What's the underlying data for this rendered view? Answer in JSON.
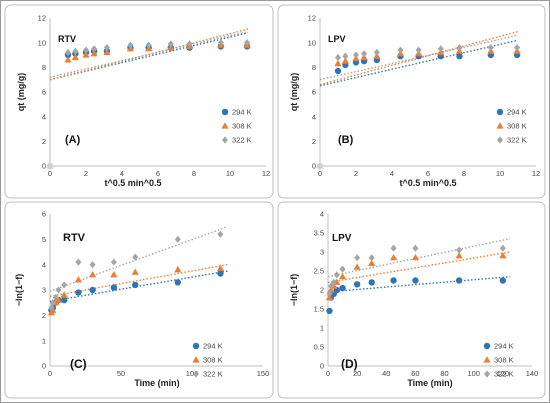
{
  "panels": [
    {
      "tag": "RTV",
      "panel_label": "(A)",
      "xlabel": "t^0.5 min^0.5",
      "ylabel": "qt (mg/g)",
      "xlim": [
        0,
        12
      ],
      "ylim": [
        0,
        12
      ],
      "xticks": [
        0,
        2,
        4,
        6,
        8,
        10,
        12
      ],
      "yticks": [
        0,
        2,
        4,
        6,
        8,
        10,
        12
      ],
      "legend": [
        "294 K",
        "308 K",
        "322 K"
      ],
      "series": [
        {
          "name": "294 K",
          "x": [
            0,
            1,
            1.41,
            2,
            2.45,
            3.16,
            4.47,
            5.48,
            6.71,
            7.75,
            9.49,
            10.95
          ],
          "y": [
            0,
            9.0,
            9.1,
            9.2,
            9.3,
            9.3,
            9.6,
            9.6,
            9.6,
            9.6,
            9.7,
            9.7
          ]
        },
        {
          "name": "308 K",
          "x": [
            0,
            1,
            1.41,
            2,
            2.45,
            3.16,
            4.47,
            5.48,
            6.71,
            7.75,
            9.49,
            10.95
          ],
          "y": [
            0,
            8.6,
            8.8,
            9.0,
            9.1,
            9.2,
            9.5,
            9.5,
            9.6,
            9.7,
            9.8,
            9.8
          ]
        },
        {
          "name": "322 K",
          "x": [
            0,
            1,
            1.41,
            2,
            2.45,
            3.16,
            4.47,
            5.48,
            6.71,
            7.75,
            9.49,
            10.95
          ],
          "y": [
            0,
            9.2,
            9.3,
            9.4,
            9.5,
            9.6,
            9.8,
            9.8,
            9.9,
            9.9,
            10.0,
            10.0
          ]
        }
      ],
      "trendlines": [
        {
          "series": "294 K",
          "x": [
            0,
            11
          ],
          "y": [
            7.0,
            10.8
          ]
        },
        {
          "series": "308 K",
          "x": [
            0,
            11
          ],
          "y": [
            7.0,
            11.1
          ]
        },
        {
          "series": "322 K",
          "x": [
            0,
            11
          ],
          "y": [
            7.2,
            10.9
          ]
        }
      ]
    },
    {
      "tag": "LPV",
      "panel_label": "(B)",
      "xlabel": "t^0.5 min^0.5",
      "ylabel": "qt (mg/g)",
      "xlim": [
        0,
        12
      ],
      "ylim": [
        0,
        12
      ],
      "xticks": [
        0,
        2,
        4,
        6,
        8,
        10,
        12
      ],
      "yticks": [
        0,
        2,
        4,
        6,
        8,
        10,
        12
      ],
      "legend": [
        "294 K",
        "308 K",
        "322 K"
      ],
      "series": [
        {
          "name": "294 K",
          "x": [
            0,
            1,
            1.41,
            2,
            2.45,
            3.16,
            4.47,
            5.48,
            6.71,
            7.75,
            9.49,
            10.95
          ],
          "y": [
            0,
            7.7,
            8.2,
            8.4,
            8.5,
            8.6,
            8.9,
            8.9,
            8.9,
            8.9,
            9.0,
            9.0
          ]
        },
        {
          "name": "308 K",
          "x": [
            0,
            1,
            1.41,
            2,
            2.45,
            3.16,
            4.47,
            5.48,
            6.71,
            7.75,
            9.49,
            10.95
          ],
          "y": [
            0,
            8.3,
            8.5,
            8.7,
            8.8,
            8.9,
            9.1,
            9.1,
            9.2,
            9.3,
            9.3,
            9.3
          ]
        },
        {
          "name": "322 K",
          "x": [
            0,
            1,
            1.41,
            2,
            2.45,
            3.16,
            4.47,
            5.48,
            6.71,
            7.75,
            9.49,
            10.95
          ],
          "y": [
            0,
            8.8,
            8.9,
            9.0,
            9.1,
            9.2,
            9.4,
            9.4,
            9.5,
            9.6,
            9.6,
            9.6
          ]
        }
      ],
      "trendlines": [
        {
          "series": "294 K",
          "x": [
            0,
            11
          ],
          "y": [
            6.5,
            10.2
          ]
        },
        {
          "series": "308 K",
          "x": [
            0,
            11
          ],
          "y": [
            6.6,
            10.9
          ]
        },
        {
          "series": "322 K",
          "x": [
            0,
            11
          ],
          "y": [
            7.0,
            10.6
          ]
        }
      ]
    },
    {
      "tag": "RTV",
      "panel_label": "(C)",
      "xlabel": "Time (min)",
      "ylabel": "−ln(1−f)",
      "xlim": [
        0,
        150
      ],
      "ylim": [
        0,
        6
      ],
      "xticks": [
        0,
        50,
        100,
        150
      ],
      "yticks": [
        0,
        1,
        2,
        3,
        4,
        5,
        6
      ],
      "legend": [
        "294 K",
        "308 K",
        "322 K"
      ],
      "series": [
        {
          "name": "294 K",
          "x": [
            1,
            2,
            4,
            6,
            10,
            20,
            30,
            45,
            60,
            90,
            120
          ],
          "y": [
            2.2,
            2.3,
            2.5,
            2.6,
            2.6,
            2.9,
            3.0,
            3.1,
            3.2,
            3.3,
            3.65
          ]
        },
        {
          "name": "308 K",
          "x": [
            1,
            2,
            4,
            6,
            10,
            20,
            30,
            45,
            60,
            90,
            120
          ],
          "y": [
            2.1,
            2.2,
            2.5,
            2.6,
            2.8,
            3.4,
            3.6,
            3.6,
            3.7,
            3.8,
            3.85
          ]
        },
        {
          "name": "322 K",
          "x": [
            1,
            2,
            4,
            6,
            10,
            20,
            30,
            45,
            60,
            90,
            120
          ],
          "y": [
            2.3,
            2.5,
            2.7,
            3.0,
            3.2,
            4.1,
            4.0,
            4.1,
            4.3,
            5.0,
            5.2
          ]
        }
      ],
      "trendlines": [
        {
          "series": "294 K",
          "x": [
            0,
            125
          ],
          "y": [
            2.55,
            3.75
          ]
        },
        {
          "series": "308 K",
          "x": [
            0,
            125
          ],
          "y": [
            2.75,
            4.0
          ]
        },
        {
          "series": "322 K",
          "x": [
            0,
            125
          ],
          "y": [
            2.95,
            5.5
          ]
        }
      ]
    },
    {
      "tag": "LPV",
      "panel_label": "(D)",
      "xlabel": "Time (min)",
      "ylabel": "−ln(1−f)",
      "xlim": [
        0,
        140
      ],
      "ylim": [
        0,
        4
      ],
      "xticks": [
        0,
        20,
        40,
        60,
        80,
        100,
        120,
        140
      ],
      "yticks": [
        0,
        0.5,
        1,
        1.5,
        2,
        2.5,
        3,
        3.5,
        4
      ],
      "legend": [
        "294 K",
        "308 K",
        "322 K"
      ],
      "series": [
        {
          "name": "294 K",
          "x": [
            1,
            2,
            4,
            6,
            10,
            20,
            30,
            45,
            60,
            90,
            120
          ],
          "y": [
            1.45,
            1.8,
            1.9,
            2.0,
            2.05,
            2.15,
            2.2,
            2.25,
            2.25,
            2.25,
            2.25
          ]
        },
        {
          "name": "308 K",
          "x": [
            1,
            2,
            4,
            6,
            10,
            20,
            30,
            45,
            60,
            90,
            120
          ],
          "y": [
            1.8,
            2.0,
            2.1,
            2.2,
            2.35,
            2.6,
            2.7,
            2.85,
            2.85,
            2.9,
            2.9
          ]
        },
        {
          "name": "322 K",
          "x": [
            1,
            2,
            4,
            6,
            10,
            20,
            30,
            45,
            60,
            90,
            120
          ],
          "y": [
            1.9,
            2.1,
            2.2,
            2.4,
            2.55,
            2.85,
            2.85,
            3.1,
            3.1,
            3.05,
            3.1
          ]
        }
      ],
      "trendlines": [
        {
          "series": "294 K",
          "x": [
            0,
            125
          ],
          "y": [
            1.95,
            2.35
          ]
        },
        {
          "series": "308 K",
          "x": [
            0,
            125
          ],
          "y": [
            2.2,
            3.0
          ]
        },
        {
          "series": "322 K",
          "x": [
            0,
            125
          ],
          "y": [
            2.35,
            3.35
          ]
        }
      ]
    }
  ],
  "colors": {
    "294 K": "#2e75b6",
    "308 K": "#ed7d31",
    "322 K": "#a5a5a5"
  },
  "markers": {
    "294 K": "circle",
    "308 K": "triangle",
    "322 K": "diamond"
  },
  "chart_data": [
    {
      "type": "scatter",
      "title": "RTV",
      "xlabel": "t^0.5 min^0.5",
      "ylabel": "qt (mg/g)",
      "xlim": [
        0,
        12
      ],
      "ylim": [
        0,
        12
      ],
      "trendlines": "linear, dotted",
      "legend": "right"
    },
    {
      "type": "scatter",
      "title": "LPV",
      "xlabel": "t^0.5 min^0.5",
      "ylabel": "qt (mg/g)",
      "xlim": [
        0,
        12
      ],
      "ylim": [
        0,
        12
      ],
      "trendlines": "linear, dotted",
      "legend": "right"
    },
    {
      "type": "scatter",
      "title": "RTV",
      "xlabel": "Time (min)",
      "ylabel": "−ln(1−f)",
      "xlim": [
        0,
        150
      ],
      "ylim": [
        0,
        6
      ],
      "trendlines": "linear, dotted",
      "legend": "bottom-right"
    },
    {
      "type": "scatter",
      "title": "LPV",
      "xlabel": "Time (min)",
      "ylabel": "−ln(1−f)",
      "xlim": [
        0,
        140
      ],
      "ylim": [
        0,
        4
      ],
      "trendlines": "linear, dotted",
      "legend": "bottom-right"
    }
  ]
}
